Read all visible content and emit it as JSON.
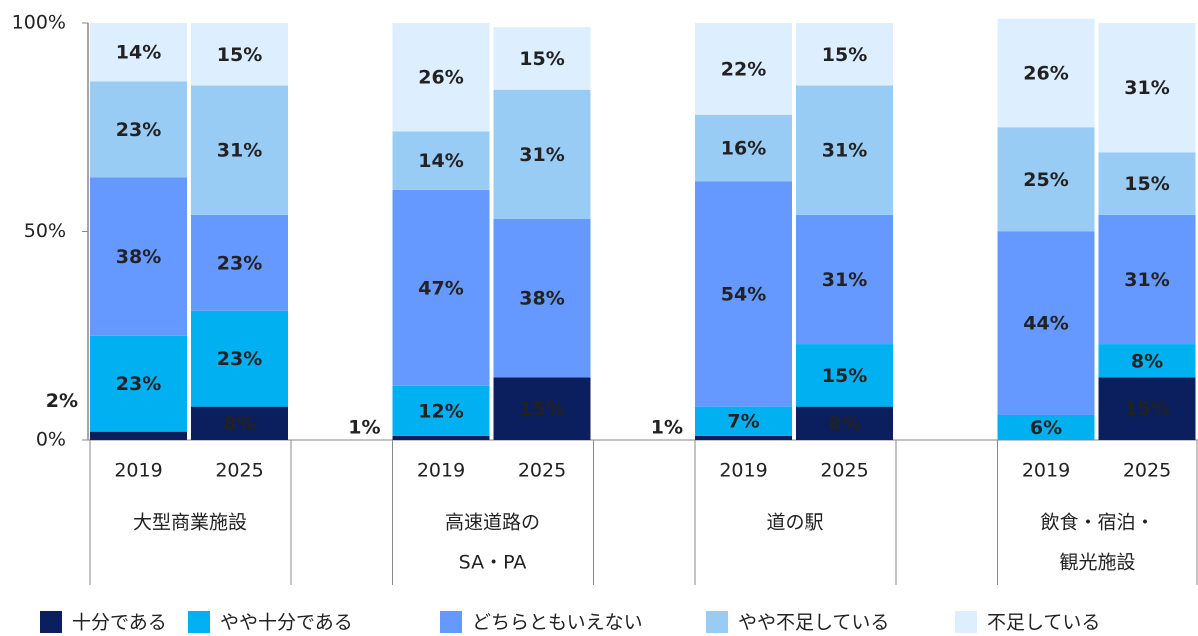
{
  "chart_data": {
    "type": "stacked-bar",
    "x": [
      "2019",
      "2025",
      "2019",
      "2025",
      "2019",
      "2025",
      "2019",
      "2025"
    ],
    "groups": [
      [
        "大型商業施設"
      ],
      [
        "高速道路の",
        "SA・PA"
      ],
      [
        "道の駅"
      ],
      [
        "飲食・宿泊・",
        "観光施設"
      ]
    ],
    "series": [
      {
        "name": "十分である",
        "color": "#0b1f5e",
        "label_color": "#ffffff",
        "values": [
          2,
          8,
          1,
          15,
          1,
          8,
          null,
          15
        ],
        "value_labels": [
          "2%",
          "8%",
          "1%",
          "15%",
          "1%",
          "8%",
          null,
          "15%"
        ]
      },
      {
        "name": "やや十分である",
        "color": "#00b0f0",
        "label_color": "#ffffff",
        "values": [
          23,
          23,
          12,
          null,
          7,
          15,
          6,
          8
        ],
        "value_labels": [
          "23%",
          "23%",
          "12%",
          null,
          "7%",
          "15%",
          "6%",
          "8%"
        ]
      },
      {
        "name": "どちらともいえない",
        "color": "#6699ff",
        "label_color": "#ffffff",
        "values": [
          38,
          23,
          47,
          38,
          54,
          31,
          44,
          31
        ],
        "value_labels": [
          "38%",
          "23%",
          "47%",
          "38%",
          "54%",
          "31%",
          "44%",
          "31%"
        ]
      },
      {
        "name": "やや不足している",
        "color": "#99ccf5",
        "label_color": "#000000",
        "values": [
          23,
          31,
          14,
          31,
          16,
          31,
          25,
          15
        ],
        "value_labels": [
          "23%",
          "31%",
          "14%",
          "31%",
          "16%",
          "31%",
          "25%",
          "15%"
        ]
      },
      {
        "name": "不足している",
        "color": "#ddeeff",
        "label_color": "#000000",
        "values": [
          14,
          15,
          26,
          15,
          22,
          15,
          26,
          31
        ],
        "value_labels": [
          "14%",
          "15%",
          "26%",
          "15%",
          "22%",
          "15%",
          "26%",
          "31%"
        ]
      }
    ],
    "ylim": [
      0,
      100
    ],
    "yticks": [
      {
        "value": 0,
        "label": "0%"
      },
      {
        "value": 50,
        "label": "50%"
      },
      {
        "value": 100,
        "label": "100%"
      }
    ]
  }
}
